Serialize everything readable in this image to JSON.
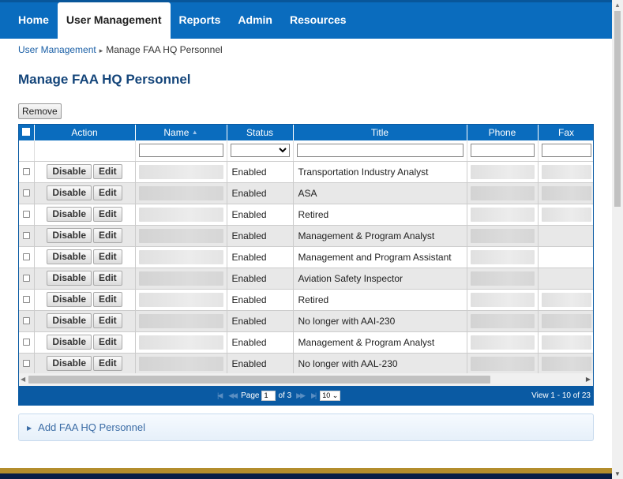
{
  "nav": {
    "items": [
      {
        "label": "Home",
        "active": false
      },
      {
        "label": "User Management",
        "active": true
      },
      {
        "label": "Reports",
        "active": false
      },
      {
        "label": "Admin",
        "active": false
      },
      {
        "label": "Resources",
        "active": false
      }
    ]
  },
  "breadcrumb": {
    "parent": "User Management",
    "separator": "▸",
    "current": "Manage FAA HQ Personnel"
  },
  "page_title": "Manage FAA HQ Personnel",
  "toolbar": {
    "remove_label": "Remove"
  },
  "grid": {
    "columns": {
      "action": "Action",
      "name": "Name",
      "sort_icon": "▲",
      "status": "Status",
      "title": "Title",
      "phone": "Phone",
      "fax": "Fax"
    },
    "disable_label": "Disable",
    "edit_label": "Edit",
    "rows": [
      {
        "status": "Enabled",
        "title": "Transportation Industry Analyst",
        "has_phone": true,
        "has_fax": true
      },
      {
        "status": "Enabled",
        "title": "ASA",
        "has_phone": true,
        "has_fax": true
      },
      {
        "status": "Enabled",
        "title": "Retired",
        "has_phone": true,
        "has_fax": true
      },
      {
        "status": "Enabled",
        "title": "Management & Program Analyst",
        "has_phone": true,
        "has_fax": false
      },
      {
        "status": "Enabled",
        "title": "Management and Program Assistant",
        "has_phone": true,
        "has_fax": false
      },
      {
        "status": "Enabled",
        "title": "Aviation Safety Inspector",
        "has_phone": true,
        "has_fax": false
      },
      {
        "status": "Enabled",
        "title": "Retired",
        "has_phone": true,
        "has_fax": true
      },
      {
        "status": "Enabled",
        "title": "No longer with AAI-230",
        "has_phone": true,
        "has_fax": true
      },
      {
        "status": "Enabled",
        "title": "Management & Program Analyst",
        "has_phone": true,
        "has_fax": true
      },
      {
        "status": "Enabled",
        "title": "No longer with AAL-230",
        "has_phone": true,
        "has_fax": true
      }
    ],
    "pager": {
      "page_label": "Page",
      "page_value": "1",
      "of_label": "of 3",
      "rows_per_page": "10",
      "view_text": "View 1 - 10 of 23"
    }
  },
  "add_panel": {
    "label": "Add FAA HQ Personnel"
  },
  "colors": {
    "nav_blue": "#0a6cbe",
    "title_blue": "#14457a",
    "footer_gold": "#b38d2c",
    "footer_navy": "#071d46"
  }
}
